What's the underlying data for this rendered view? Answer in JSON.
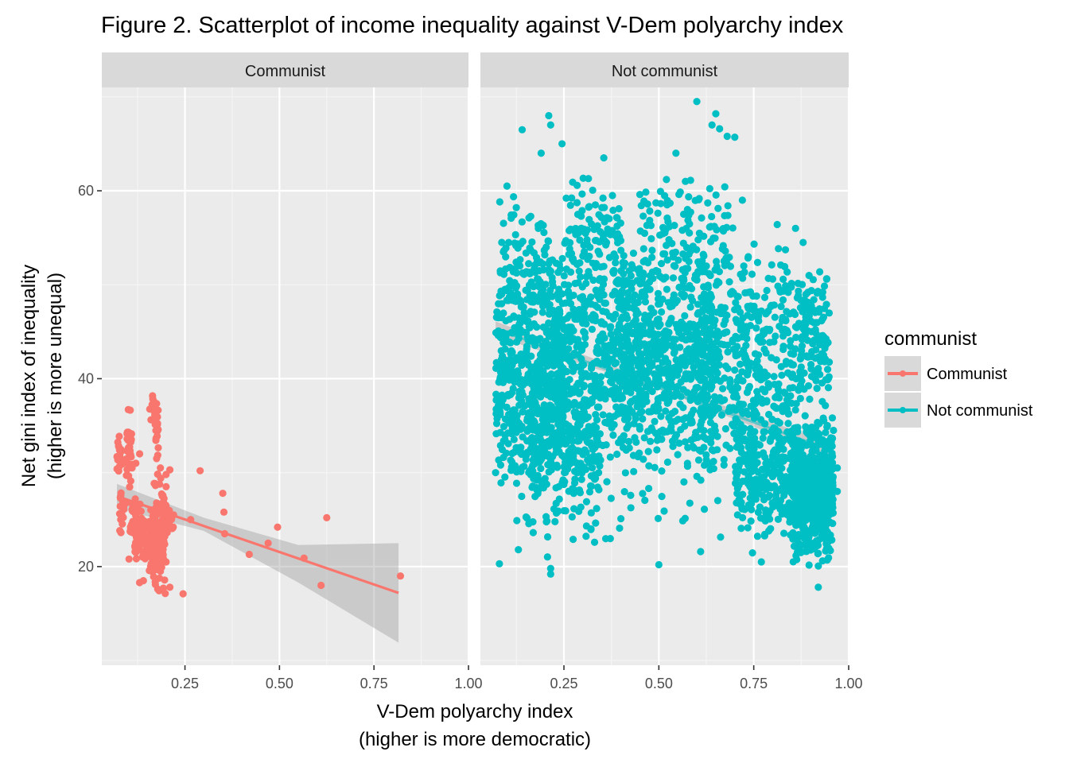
{
  "chart_data": {
    "type": "scatter",
    "title": "Figure 2. Scatterplot of income inequality against V-Dem polyarchy index",
    "xlabel": [
      "V-Dem polyarchy index",
      "(higher is more democratic)"
    ],
    "ylabel": [
      "Net gini index of inequality",
      "(higher is more unequal)"
    ],
    "xlim": [
      0.03,
      1.0
    ],
    "ylim": [
      9.5,
      71.0
    ],
    "x_ticks": [
      0.25,
      0.5,
      0.75,
      1.0
    ],
    "x_tick_labels": [
      "0.25",
      "0.50",
      "0.75",
      "1.00"
    ],
    "y_ticks": [
      20,
      40,
      60
    ],
    "y_tick_labels": [
      "20",
      "40",
      "60"
    ],
    "grid": true,
    "legend": {
      "title": "communist",
      "placement": "right"
    },
    "colors": {
      "communist": "#F8766D",
      "not_communist": "#00BFC4",
      "ribbon": "#999999",
      "panel": "#EBEBEB",
      "strip": "#D9D9D9",
      "grid": "#FFFFFF"
    },
    "facets": [
      {
        "label": "Communist",
        "series": "Communist",
        "color": "#F8766D",
        "trend": {
          "x": [
            0.07,
            0.815
          ],
          "y": [
            27.5,
            17.2
          ]
        },
        "ribbon": {
          "x": [
            0.07,
            0.3,
            0.55,
            0.815
          ],
          "lower": [
            26.2,
            23.8,
            18.3,
            11.9
          ],
          "upper": [
            28.8,
            25.2,
            22.3,
            22.5
          ]
        },
        "clusters": [
          {
            "x": [
              0.07,
              0.085
            ],
            "y": [
              29,
              34
            ],
            "n": 20
          },
          {
            "x": [
              0.075,
              0.09
            ],
            "y": [
              22,
              29
            ],
            "n": 15
          },
          {
            "x": [
              0.095,
              0.11
            ],
            "y": [
              28,
              37.5
            ],
            "n": 30
          },
          {
            "x": [
              0.105,
              0.14
            ],
            "y": [
              20,
              28
            ],
            "n": 70
          },
          {
            "x": [
              0.14,
              0.175
            ],
            "y": [
              19,
              27
            ],
            "n": 60
          },
          {
            "x": [
              0.155,
              0.17
            ],
            "y": [
              35,
              39
            ],
            "n": 15
          },
          {
            "x": [
              0.17,
              0.18
            ],
            "y": [
              31,
              38.5
            ],
            "n": 20
          },
          {
            "x": [
              0.165,
              0.2
            ],
            "y": [
              16.5,
              30
            ],
            "n": 90
          },
          {
            "x": [
              0.19,
              0.22
            ],
            "y": [
              23,
              28
            ],
            "n": 25
          }
        ],
        "points": [
          {
            "x": 0.11,
            "y": 30.5
          },
          {
            "x": 0.13,
            "y": 32
          },
          {
            "x": 0.12,
            "y": 31
          },
          {
            "x": 0.185,
            "y": 30.5
          },
          {
            "x": 0.21,
            "y": 30.3
          },
          {
            "x": 0.2,
            "y": 28.5
          },
          {
            "x": 0.2,
            "y": 29.8
          },
          {
            "x": 0.175,
            "y": 31.5
          },
          {
            "x": 0.14,
            "y": 18.5
          },
          {
            "x": 0.13,
            "y": 18.3
          },
          {
            "x": 0.21,
            "y": 17.8
          },
          {
            "x": 0.245,
            "y": 17.1
          },
          {
            "x": 0.2,
            "y": 20.5
          },
          {
            "x": 0.22,
            "y": 25.5
          },
          {
            "x": 0.265,
            "y": 25
          },
          {
            "x": 0.29,
            "y": 30.2
          },
          {
            "x": 0.35,
            "y": 27.8
          },
          {
            "x": 0.353,
            "y": 25.8
          },
          {
            "x": 0.355,
            "y": 23.5
          },
          {
            "x": 0.42,
            "y": 21.3
          },
          {
            "x": 0.47,
            "y": 22.5
          },
          {
            "x": 0.495,
            "y": 24.2
          },
          {
            "x": 0.565,
            "y": 20.9
          },
          {
            "x": 0.61,
            "y": 18
          },
          {
            "x": 0.625,
            "y": 25.2
          },
          {
            "x": 0.82,
            "y": 19
          },
          {
            "x": 0.12,
            "y": 26.5
          },
          {
            "x": 0.12,
            "y": 21.5
          },
          {
            "x": 0.15,
            "y": 24.5
          },
          {
            "x": 0.16,
            "y": 21
          },
          {
            "x": 0.19,
            "y": 27.5
          },
          {
            "x": 0.095,
            "y": 26.8
          },
          {
            "x": 0.08,
            "y": 25
          },
          {
            "x": 0.18,
            "y": 23
          },
          {
            "x": 0.17,
            "y": 25.8
          },
          {
            "x": 0.155,
            "y": 22.5
          },
          {
            "x": 0.135,
            "y": 23.7
          },
          {
            "x": 0.112,
            "y": 24.8
          },
          {
            "x": 0.102,
            "y": 20.8
          },
          {
            "x": 0.185,
            "y": 19.5
          },
          {
            "x": 0.178,
            "y": 17.6
          },
          {
            "x": 0.192,
            "y": 22.2
          }
        ]
      },
      {
        "label": "Not communist",
        "series": "Not communist",
        "color": "#00BFC4",
        "trend": {
          "x": [
            0.07,
            0.96
          ],
          "y": [
            45.3,
            32.3
          ]
        },
        "ribbon": {
          "x": [
            0.07,
            0.5,
            0.96
          ],
          "lower": [
            44.5,
            38.9,
            31.5
          ],
          "upper": [
            46.1,
            39.5,
            33.1
          ]
        },
        "clusters": [
          {
            "x": [
              0.07,
              0.25
            ],
            "y": [
              27,
              52
            ],
            "n": 420
          },
          {
            "x": [
              0.08,
              0.22
            ],
            "y": [
              44,
              60
            ],
            "n": 120
          },
          {
            "x": [
              0.15,
              0.35
            ],
            "y": [
              23,
              42
            ],
            "n": 260
          },
          {
            "x": [
              0.2,
              0.45
            ],
            "y": [
              30,
              55
            ],
            "n": 480
          },
          {
            "x": [
              0.25,
              0.4
            ],
            "y": [
              50,
              62
            ],
            "n": 90
          },
          {
            "x": [
              0.4,
              0.65
            ],
            "y": [
              30,
              55
            ],
            "n": 560
          },
          {
            "x": [
              0.45,
              0.7
            ],
            "y": [
              50,
              62
            ],
            "n": 100
          },
          {
            "x": [
              0.6,
              0.85
            ],
            "y": [
              28,
              55
            ],
            "n": 380
          },
          {
            "x": [
              0.7,
              0.88
            ],
            "y": [
              22,
              36
            ],
            "n": 240
          },
          {
            "x": [
              0.85,
              0.96
            ],
            "y": [
              20,
              36
            ],
            "n": 620
          },
          {
            "x": [
              0.85,
              0.95
            ],
            "y": [
              36,
              52
            ],
            "n": 130
          },
          {
            "x": [
              0.07,
              0.95
            ],
            "y": [
              20,
              58
            ],
            "n": 300
          }
        ],
        "points": [
          {
            "x": 0.6,
            "y": 69.5
          },
          {
            "x": 0.21,
            "y": 68
          },
          {
            "x": 0.65,
            "y": 68.2
          },
          {
            "x": 0.14,
            "y": 66.5
          },
          {
            "x": 0.215,
            "y": 67
          },
          {
            "x": 0.66,
            "y": 66.6
          },
          {
            "x": 0.68,
            "y": 65.8
          },
          {
            "x": 0.7,
            "y": 65.7
          },
          {
            "x": 0.64,
            "y": 67
          },
          {
            "x": 0.245,
            "y": 65
          },
          {
            "x": 0.545,
            "y": 64
          },
          {
            "x": 0.355,
            "y": 63.5
          },
          {
            "x": 0.19,
            "y": 64
          },
          {
            "x": 0.1,
            "y": 60.5
          },
          {
            "x": 0.08,
            "y": 20.3
          },
          {
            "x": 0.215,
            "y": 19.8
          },
          {
            "x": 0.215,
            "y": 19.2
          },
          {
            "x": 0.5,
            "y": 20.2
          },
          {
            "x": 0.92,
            "y": 17.8
          },
          {
            "x": 0.13,
            "y": 21.8
          },
          {
            "x": 0.61,
            "y": 21.6
          },
          {
            "x": 0.77,
            "y": 20.5
          },
          {
            "x": 0.4,
            "y": 25.1
          },
          {
            "x": 0.07,
            "y": 30
          },
          {
            "x": 0.97,
            "y": 30.5
          },
          {
            "x": 0.97,
            "y": 28
          },
          {
            "x": 0.96,
            "y": 34.5
          },
          {
            "x": 0.45,
            "y": 59.6
          },
          {
            "x": 0.57,
            "y": 61
          },
          {
            "x": 0.52,
            "y": 61.2
          },
          {
            "x": 0.72,
            "y": 59
          },
          {
            "x": 0.86,
            "y": 56
          },
          {
            "x": 0.88,
            "y": 54.5
          }
        ]
      }
    ]
  }
}
